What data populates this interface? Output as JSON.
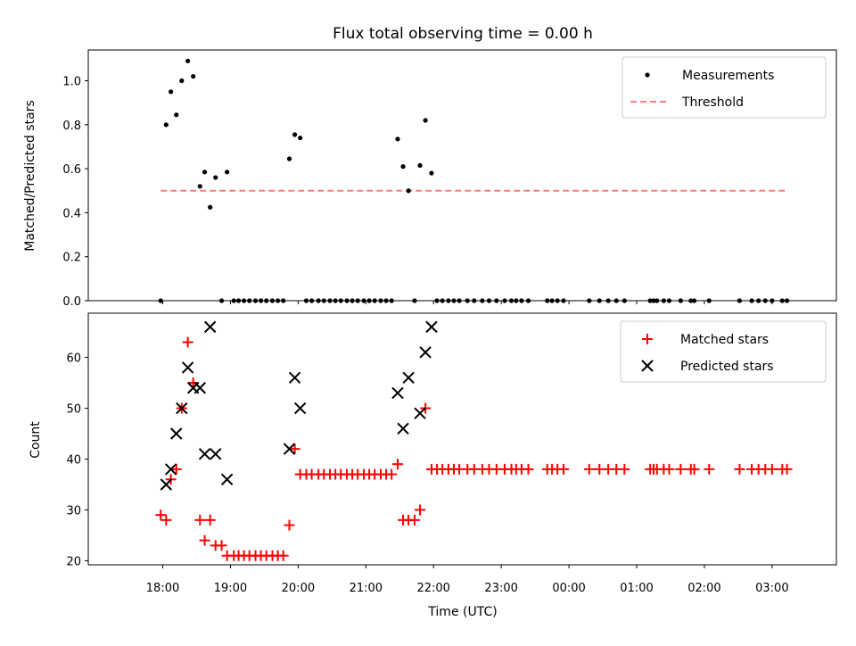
{
  "chart_data": [
    {
      "type": "scatter",
      "title": "Flux total observing time = 0.00 h",
      "xlabel": "",
      "ylabel": "Matched/Predicted stars",
      "xlim": [
        16.9,
        27.95
      ],
      "ylim": [
        0,
        1.14
      ],
      "x_unit": "hours (UTC, continuing past midnight)",
      "yticks": [
        0.0,
        0.2,
        0.4,
        0.6,
        0.8,
        1.0
      ],
      "ytick_labels": [
        "0.0",
        "0.2",
        "0.4",
        "0.6",
        "0.8",
        "1.0"
      ],
      "legend_position": "upper right",
      "grid": false,
      "series": [
        {
          "name": "Measurements",
          "marker": "dot",
          "color": "#000000",
          "points": [
            [
              17.97,
              0.0
            ],
            [
              18.05,
              0.8
            ],
            [
              18.12,
              0.95
            ],
            [
              18.2,
              0.845
            ],
            [
              18.28,
              1.0
            ],
            [
              18.37,
              1.09
            ],
            [
              18.45,
              1.02
            ],
            [
              18.55,
              0.52
            ],
            [
              18.62,
              0.585
            ],
            [
              18.7,
              0.425
            ],
            [
              18.78,
              0.56
            ],
            [
              18.87,
              0.0
            ],
            [
              18.95,
              0.585
            ],
            [
              19.05,
              0.0
            ],
            [
              19.12,
              0.0
            ],
            [
              19.2,
              0.0
            ],
            [
              19.28,
              0.0
            ],
            [
              19.37,
              0.0
            ],
            [
              19.45,
              0.0
            ],
            [
              19.53,
              0.0
            ],
            [
              19.62,
              0.0
            ],
            [
              19.7,
              0.0
            ],
            [
              19.78,
              0.0
            ],
            [
              19.87,
              0.645
            ],
            [
              19.95,
              0.755
            ],
            [
              20.03,
              0.74
            ],
            [
              20.12,
              0.0
            ],
            [
              20.2,
              0.0
            ],
            [
              20.3,
              0.0
            ],
            [
              20.38,
              0.0
            ],
            [
              20.47,
              0.0
            ],
            [
              20.55,
              0.0
            ],
            [
              20.63,
              0.0
            ],
            [
              20.72,
              0.0
            ],
            [
              20.8,
              0.0
            ],
            [
              20.88,
              0.0
            ],
            [
              20.97,
              0.0
            ],
            [
              21.05,
              0.0
            ],
            [
              21.13,
              0.0
            ],
            [
              21.22,
              0.0
            ],
            [
              21.3,
              0.0
            ],
            [
              21.38,
              0.0
            ],
            [
              21.47,
              0.735
            ],
            [
              21.55,
              0.61
            ],
            [
              21.63,
              0.5
            ],
            [
              21.72,
              0.0
            ],
            [
              21.8,
              0.615
            ],
            [
              21.88,
              0.82
            ],
            [
              21.97,
              0.58
            ],
            [
              22.05,
              0.0
            ],
            [
              22.13,
              0.0
            ],
            [
              22.22,
              0.0
            ],
            [
              22.3,
              0.0
            ],
            [
              22.38,
              0.0
            ],
            [
              22.5,
              0.0
            ],
            [
              22.6,
              0.0
            ],
            [
              22.72,
              0.0
            ],
            [
              22.82,
              0.0
            ],
            [
              22.93,
              0.0
            ],
            [
              23.05,
              0.0
            ],
            [
              23.15,
              0.0
            ],
            [
              23.22,
              0.0
            ],
            [
              23.3,
              0.0
            ],
            [
              23.4,
              0.0
            ],
            [
              23.68,
              0.0
            ],
            [
              23.75,
              0.0
            ],
            [
              23.83,
              0.0
            ],
            [
              23.92,
              0.0
            ],
            [
              24.3,
              0.0
            ],
            [
              24.45,
              0.0
            ],
            [
              24.58,
              0.0
            ],
            [
              24.7,
              0.0
            ],
            [
              24.82,
              0.0
            ],
            [
              25.2,
              0.0
            ],
            [
              25.25,
              0.0
            ],
            [
              25.3,
              0.0
            ],
            [
              25.4,
              0.0
            ],
            [
              25.48,
              0.0
            ],
            [
              25.65,
              0.0
            ],
            [
              25.8,
              0.0
            ],
            [
              25.85,
              0.0
            ],
            [
              26.07,
              0.0
            ],
            [
              26.52,
              0.0
            ],
            [
              26.7,
              0.0
            ],
            [
              26.8,
              0.0
            ],
            [
              26.9,
              0.0
            ],
            [
              27.0,
              0.0
            ],
            [
              27.15,
              0.0
            ],
            [
              27.22,
              0.0
            ]
          ]
        },
        {
          "name": "Threshold",
          "marker": "dashed-line",
          "color": "#ff7f7f",
          "points": [
            [
              17.97,
              0.5
            ],
            [
              27.22,
              0.5
            ]
          ]
        }
      ]
    },
    {
      "type": "scatter",
      "title": "",
      "xlabel": "Time (UTC)",
      "ylabel": "Count",
      "xlim": [
        16.9,
        27.95
      ],
      "ylim": [
        19.2,
        68.7
      ],
      "x_unit": "hours (UTC, continuing past midnight)",
      "xticks": [
        18,
        19,
        20,
        21,
        22,
        23,
        24,
        25,
        26,
        27
      ],
      "xtick_labels": [
        "18:00",
        "19:00",
        "20:00",
        "21:00",
        "22:00",
        "23:00",
        "00:00",
        "01:00",
        "02:00",
        "03:00"
      ],
      "yticks": [
        20,
        30,
        40,
        50,
        60
      ],
      "ytick_labels": [
        "20",
        "30",
        "40",
        "50",
        "60"
      ],
      "legend_position": "upper right",
      "grid": false,
      "series": [
        {
          "name": "Matched stars",
          "marker": "plus",
          "color": "#ff0000",
          "points": [
            [
              17.97,
              29
            ],
            [
              18.05,
              28
            ],
            [
              18.12,
              36
            ],
            [
              18.2,
              38
            ],
            [
              18.28,
              50
            ],
            [
              18.37,
              63
            ],
            [
              18.45,
              55
            ],
            [
              18.55,
              28
            ],
            [
              18.62,
              24
            ],
            [
              18.7,
              28
            ],
            [
              18.78,
              23
            ],
            [
              18.87,
              23
            ],
            [
              18.95,
              21
            ],
            [
              19.05,
              21
            ],
            [
              19.12,
              21
            ],
            [
              19.2,
              21
            ],
            [
              19.28,
              21
            ],
            [
              19.37,
              21
            ],
            [
              19.45,
              21
            ],
            [
              19.53,
              21
            ],
            [
              19.62,
              21
            ],
            [
              19.7,
              21
            ],
            [
              19.78,
              21
            ],
            [
              19.87,
              27
            ],
            [
              19.95,
              42
            ],
            [
              20.03,
              37
            ],
            [
              20.12,
              37
            ],
            [
              20.2,
              37
            ],
            [
              20.3,
              37
            ],
            [
              20.38,
              37
            ],
            [
              20.47,
              37
            ],
            [
              20.55,
              37
            ],
            [
              20.63,
              37
            ],
            [
              20.72,
              37
            ],
            [
              20.8,
              37
            ],
            [
              20.88,
              37
            ],
            [
              20.97,
              37
            ],
            [
              21.05,
              37
            ],
            [
              21.13,
              37
            ],
            [
              21.22,
              37
            ],
            [
              21.3,
              37
            ],
            [
              21.38,
              37
            ],
            [
              21.47,
              39
            ],
            [
              21.55,
              28
            ],
            [
              21.63,
              28
            ],
            [
              21.72,
              28
            ],
            [
              21.8,
              30
            ],
            [
              21.88,
              50
            ],
            [
              21.97,
              38
            ],
            [
              22.05,
              38
            ],
            [
              22.13,
              38
            ],
            [
              22.22,
              38
            ],
            [
              22.3,
              38
            ],
            [
              22.38,
              38
            ],
            [
              22.5,
              38
            ],
            [
              22.6,
              38
            ],
            [
              22.72,
              38
            ],
            [
              22.82,
              38
            ],
            [
              22.93,
              38
            ],
            [
              23.05,
              38
            ],
            [
              23.15,
              38
            ],
            [
              23.22,
              38
            ],
            [
              23.3,
              38
            ],
            [
              23.4,
              38
            ],
            [
              23.68,
              38
            ],
            [
              23.75,
              38
            ],
            [
              23.83,
              38
            ],
            [
              23.92,
              38
            ],
            [
              24.3,
              38
            ],
            [
              24.45,
              38
            ],
            [
              24.58,
              38
            ],
            [
              24.7,
              38
            ],
            [
              24.82,
              38
            ],
            [
              25.2,
              38
            ],
            [
              25.25,
              38
            ],
            [
              25.3,
              38
            ],
            [
              25.4,
              38
            ],
            [
              25.48,
              38
            ],
            [
              25.65,
              38
            ],
            [
              25.8,
              38
            ],
            [
              25.85,
              38
            ],
            [
              26.07,
              38
            ],
            [
              26.52,
              38
            ],
            [
              26.7,
              38
            ],
            [
              26.8,
              38
            ],
            [
              26.9,
              38
            ],
            [
              27.0,
              38
            ],
            [
              27.15,
              38
            ],
            [
              27.22,
              38
            ]
          ]
        },
        {
          "name": "Predicted stars",
          "marker": "x",
          "color": "#000000",
          "points": [
            [
              18.05,
              35
            ],
            [
              18.12,
              38
            ],
            [
              18.2,
              45
            ],
            [
              18.28,
              50
            ],
            [
              18.37,
              58
            ],
            [
              18.45,
              54
            ],
            [
              18.55,
              54
            ],
            [
              18.62,
              41
            ],
            [
              18.7,
              66
            ],
            [
              18.78,
              41
            ],
            [
              18.95,
              36
            ],
            [
              19.87,
              42
            ],
            [
              19.95,
              56
            ],
            [
              20.03,
              50
            ],
            [
              21.47,
              53
            ],
            [
              21.55,
              46
            ],
            [
              21.63,
              56
            ],
            [
              21.8,
              49
            ],
            [
              21.88,
              61
            ],
            [
              21.97,
              66
            ]
          ]
        }
      ]
    }
  ],
  "colors": {
    "matched": "#ff0000",
    "predicted": "#000000",
    "measurements": "#000000",
    "threshold": "#ff7f7f",
    "axes": "#000000",
    "legend_border": "#cccccc"
  }
}
